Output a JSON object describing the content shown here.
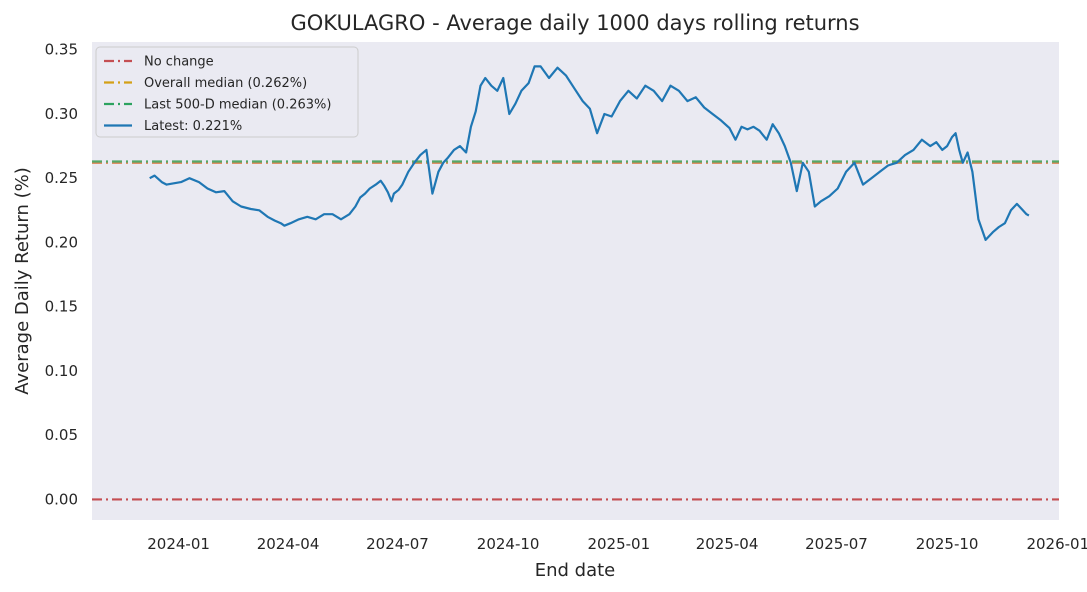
{
  "chart_data": {
    "type": "line",
    "title": "GOKULAGRO - Average daily 1000 days rolling returns",
    "xlabel": "End date",
    "ylabel": "Average Daily Return (%)",
    "ylim": [
      -0.016,
      0.356
    ],
    "yticks": [
      0.0,
      0.05,
      0.1,
      0.15,
      0.2,
      0.25,
      0.3,
      0.35
    ],
    "ytick_labels": [
      "0.00",
      "0.05",
      "0.10",
      "0.15",
      "0.20",
      "0.25",
      "0.30",
      "0.35"
    ],
    "xlim": [
      "2023-10-21",
      "2026-01-02"
    ],
    "xticks": [
      "2024-01-01",
      "2024-04-01",
      "2024-07-01",
      "2024-10-01",
      "2025-01-01",
      "2025-04-01",
      "2025-07-01",
      "2025-10-01",
      "2026-01-01"
    ],
    "xtick_labels": [
      "2024-01",
      "2024-04",
      "2024-07",
      "2024-10",
      "2025-01",
      "2025-04",
      "2025-07",
      "2025-10",
      "2026-01"
    ],
    "grid": false,
    "legend_position": "top-left",
    "colors": {
      "plot_bg": "#eaeaf2",
      "no_change": "#c44e52",
      "overall_median": "#dd8452",
      "last500_median": "#55a868",
      "series": "#1f77b4",
      "last500_legend": "#2ca25f",
      "overall_legend": "#d4a017"
    },
    "hlines": [
      {
        "name": "No change",
        "value": 0.0
      },
      {
        "name": "Overall median (0.262%)",
        "value": 0.262
      },
      {
        "name": "Last 500-D median (0.263%)",
        "value": 0.263
      }
    ],
    "legend": [
      "No change",
      "Overall median (0.262%)",
      "Last 500-D median (0.263%)",
      "Latest: 0.221%"
    ],
    "series": [
      {
        "name": "Latest: 0.221%",
        "x": [
          "2023-12-08",
          "2023-12-12",
          "2023-12-18",
          "2023-12-22",
          "2023-12-28",
          "2024-01-03",
          "2024-01-10",
          "2024-01-18",
          "2024-01-25",
          "2024-02-01",
          "2024-02-08",
          "2024-02-15",
          "2024-02-22",
          "2024-03-01",
          "2024-03-08",
          "2024-03-15",
          "2024-03-21",
          "2024-03-26",
          "2024-03-29",
          "2024-04-03",
          "2024-04-10",
          "2024-04-17",
          "2024-04-24",
          "2024-05-01",
          "2024-05-08",
          "2024-05-15",
          "2024-05-22",
          "2024-05-27",
          "2024-05-31",
          "2024-06-04",
          "2024-06-08",
          "2024-06-13",
          "2024-06-17",
          "2024-06-20",
          "2024-06-23",
          "2024-06-26",
          "2024-06-28",
          "2024-07-02",
          "2024-07-05",
          "2024-07-10",
          "2024-07-15",
          "2024-07-20",
          "2024-07-25",
          "2024-07-30",
          "2024-08-04",
          "2024-08-08",
          "2024-08-12",
          "2024-08-17",
          "2024-08-22",
          "2024-08-27",
          "2024-08-31",
          "2024-09-04",
          "2024-09-08",
          "2024-09-12",
          "2024-09-17",
          "2024-09-22",
          "2024-09-27",
          "2024-10-02",
          "2024-10-07",
          "2024-10-12",
          "2024-10-18",
          "2024-10-23",
          "2024-10-28",
          "2024-11-04",
          "2024-11-11",
          "2024-11-18",
          "2024-11-25",
          "2024-12-02",
          "2024-12-08",
          "2024-12-14",
          "2024-12-20",
          "2024-12-26",
          "2025-01-02",
          "2025-01-09",
          "2025-01-16",
          "2025-01-23",
          "2025-01-30",
          "2025-02-06",
          "2025-02-13",
          "2025-02-20",
          "2025-02-27",
          "2025-03-06",
          "2025-03-13",
          "2025-03-20",
          "2025-03-27",
          "2025-04-03",
          "2025-04-08",
          "2025-04-13",
          "2025-04-18",
          "2025-04-23",
          "2025-04-28",
          "2025-05-04",
          "2025-05-09",
          "2025-05-14",
          "2025-05-19",
          "2025-05-24",
          "2025-05-29",
          "2025-06-03",
          "2025-06-08",
          "2025-06-13",
          "2025-06-18",
          "2025-06-25",
          "2025-07-02",
          "2025-07-09",
          "2025-07-16",
          "2025-07-23",
          "2025-07-30",
          "2025-08-06",
          "2025-08-13",
          "2025-08-20",
          "2025-08-27",
          "2025-09-03",
          "2025-09-10",
          "2025-09-17",
          "2025-09-22",
          "2025-09-27",
          "2025-10-01",
          "2025-10-05",
          "2025-10-08",
          "2025-10-11",
          "2025-10-14",
          "2025-10-18",
          "2025-10-22",
          "2025-10-27",
          "2025-11-02",
          "2025-11-08",
          "2025-11-13",
          "2025-11-18",
          "2025-11-23",
          "2025-11-28",
          "2025-12-02",
          "2025-12-06",
          "2025-12-08"
        ],
        "values": [
          0.25,
          0.252,
          0.247,
          0.245,
          0.246,
          0.247,
          0.25,
          0.247,
          0.242,
          0.239,
          0.24,
          0.232,
          0.228,
          0.226,
          0.225,
          0.22,
          0.217,
          0.215,
          0.213,
          0.215,
          0.218,
          0.22,
          0.218,
          0.222,
          0.222,
          0.218,
          0.222,
          0.228,
          0.235,
          0.238,
          0.242,
          0.245,
          0.248,
          0.244,
          0.239,
          0.232,
          0.238,
          0.241,
          0.245,
          0.255,
          0.262,
          0.268,
          0.272,
          0.238,
          0.255,
          0.262,
          0.266,
          0.272,
          0.275,
          0.27,
          0.29,
          0.302,
          0.322,
          0.328,
          0.322,
          0.318,
          0.328,
          0.3,
          0.308,
          0.318,
          0.324,
          0.337,
          0.337,
          0.328,
          0.336,
          0.33,
          0.32,
          0.31,
          0.304,
          0.285,
          0.3,
          0.298,
          0.31,
          0.318,
          0.312,
          0.322,
          0.318,
          0.31,
          0.322,
          0.318,
          0.31,
          0.313,
          0.305,
          0.3,
          0.295,
          0.289,
          0.28,
          0.29,
          0.288,
          0.29,
          0.287,
          0.28,
          0.292,
          0.285,
          0.275,
          0.262,
          0.24,
          0.262,
          0.255,
          0.228,
          0.232,
          0.236,
          0.242,
          0.255,
          0.262,
          0.245,
          0.25,
          0.255,
          0.26,
          0.262,
          0.268,
          0.272,
          0.28,
          0.275,
          0.278,
          0.272,
          0.275,
          0.282,
          0.285,
          0.272,
          0.262,
          0.27,
          0.255,
          0.218,
          0.202,
          0.208,
          0.212,
          0.215,
          0.225,
          0.23,
          0.226,
          0.222,
          0.221
        ]
      }
    ]
  }
}
